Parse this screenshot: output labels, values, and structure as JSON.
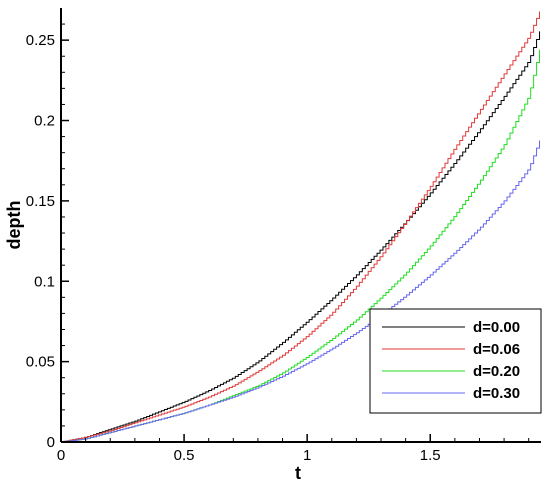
{
  "chart_data": {
    "type": "line",
    "xlabel": "t",
    "ylabel": "depth",
    "xlim": [
      0,
      1.95
    ],
    "ylim": [
      0,
      0.27
    ],
    "x_ticks": [
      0,
      0.5,
      1,
      1.5
    ],
    "x_tick_labels": [
      "0",
      "0.5",
      "1",
      "1.5"
    ],
    "y_ticks": [
      0,
      0.05,
      0.1,
      0.15,
      0.2,
      0.25
    ],
    "y_tick_labels": [
      "0",
      "0.05",
      "0.1",
      "0.15",
      "0.2",
      "0.25"
    ],
    "grid": false,
    "legend_position": "bottom-right",
    "series": [
      {
        "name": "d=0.00",
        "color": "#000000",
        "x": [
          0,
          0.1,
          0.2,
          0.3,
          0.4,
          0.5,
          0.6,
          0.7,
          0.8,
          0.9,
          1.0,
          1.1,
          1.2,
          1.3,
          1.4,
          1.5,
          1.6,
          1.7,
          1.8,
          1.9,
          1.95
        ],
        "y": [
          0,
          0.003,
          0.008,
          0.013,
          0.019,
          0.025,
          0.032,
          0.04,
          0.05,
          0.062,
          0.075,
          0.089,
          0.104,
          0.12,
          0.137,
          0.155,
          0.174,
          0.194,
          0.215,
          0.237,
          0.258
        ]
      },
      {
        "name": "d=0.06",
        "color": "#e03a3a",
        "x": [
          0,
          0.1,
          0.2,
          0.3,
          0.4,
          0.5,
          0.6,
          0.7,
          0.8,
          0.9,
          1.0,
          1.1,
          1.2,
          1.3,
          1.4,
          1.5,
          1.6,
          1.7,
          1.8,
          1.9,
          1.95
        ],
        "y": [
          0,
          0.003,
          0.007,
          0.012,
          0.017,
          0.022,
          0.028,
          0.035,
          0.044,
          0.054,
          0.066,
          0.08,
          0.097,
          0.116,
          0.137,
          0.159,
          0.183,
          0.206,
          0.229,
          0.252,
          0.27
        ]
      },
      {
        "name": "d=0.20",
        "color": "#22dd22",
        "x": [
          0,
          0.1,
          0.2,
          0.3,
          0.4,
          0.5,
          0.6,
          0.7,
          0.8,
          0.9,
          1.0,
          1.1,
          1.2,
          1.3,
          1.4,
          1.5,
          1.6,
          1.7,
          1.8,
          1.9,
          1.95
        ],
        "y": [
          0,
          0.002,
          0.006,
          0.01,
          0.014,
          0.018,
          0.023,
          0.029,
          0.035,
          0.043,
          0.053,
          0.064,
          0.076,
          0.09,
          0.105,
          0.122,
          0.141,
          0.162,
          0.185,
          0.215,
          0.248
        ]
      },
      {
        "name": "d=0.30",
        "color": "#6666ee",
        "x": [
          0,
          0.1,
          0.2,
          0.3,
          0.4,
          0.5,
          0.6,
          0.7,
          0.8,
          0.9,
          1.0,
          1.1,
          1.2,
          1.3,
          1.4,
          1.5,
          1.6,
          1.7,
          1.8,
          1.9,
          1.95
        ],
        "y": [
          0,
          0.002,
          0.006,
          0.01,
          0.014,
          0.018,
          0.023,
          0.028,
          0.034,
          0.041,
          0.049,
          0.058,
          0.068,
          0.079,
          0.091,
          0.104,
          0.118,
          0.133,
          0.15,
          0.17,
          0.19
        ]
      }
    ]
  }
}
